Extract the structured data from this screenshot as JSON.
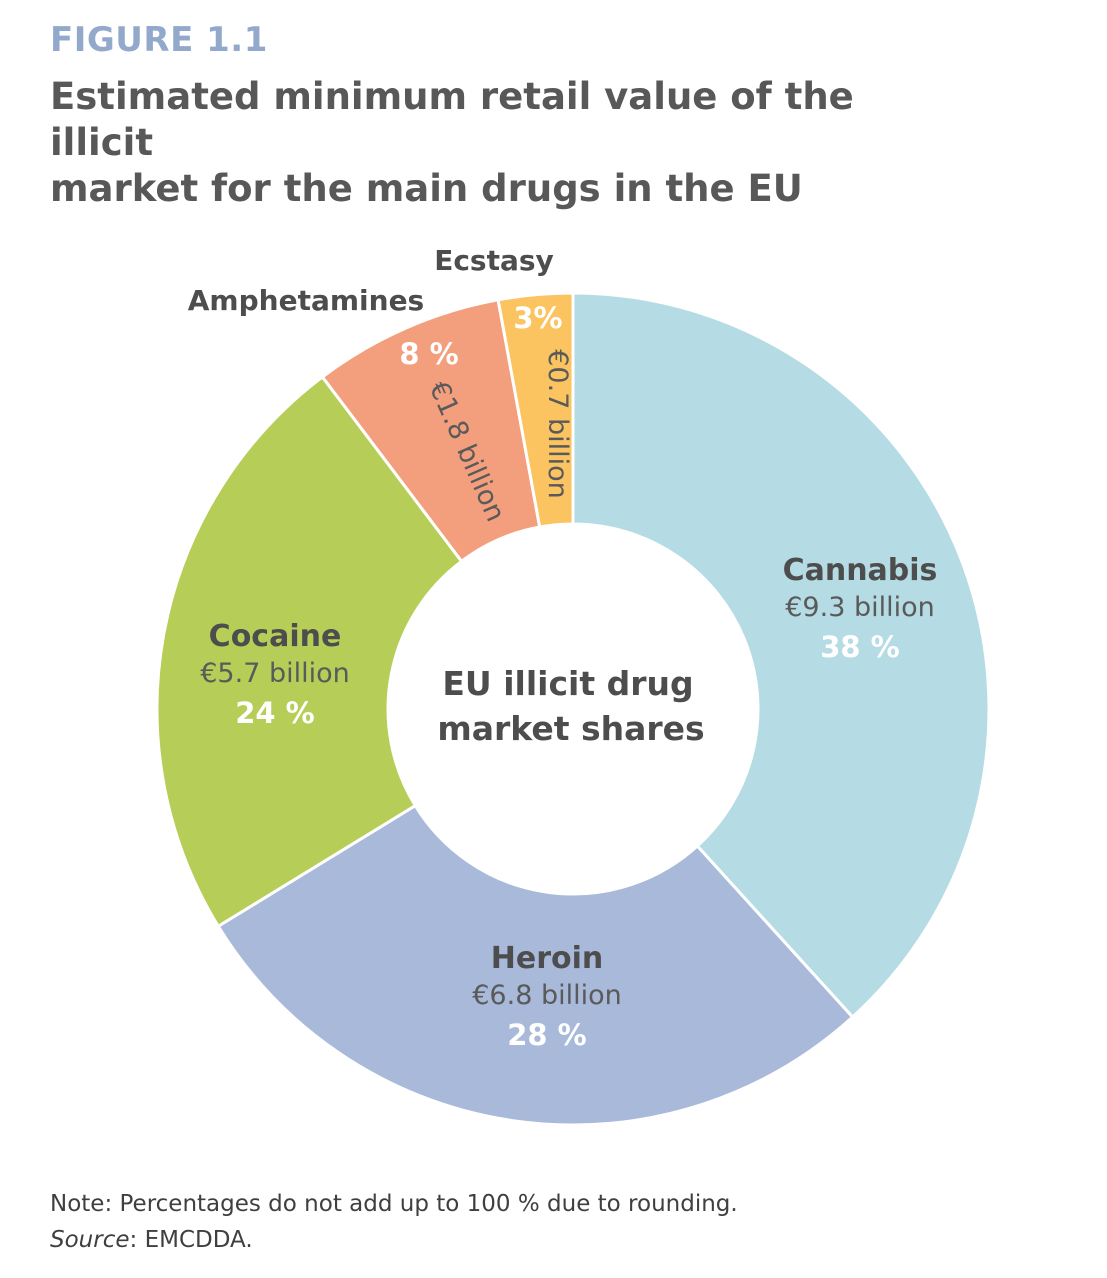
{
  "figure_label": "FIGURE 1.1",
  "title_lines": [
    "Estimated minimum retail value of the illicit",
    "market for the main drugs in the EU"
  ],
  "center_label_lines": [
    "EU illicit drug",
    "market shares"
  ],
  "chart_data": {
    "type": "pie",
    "title": "Estimated minimum retail value of the illicit market for the main drugs in the EU",
    "unit": "EUR billion",
    "slices": [
      {
        "name": "Cannabis",
        "value": 9.3,
        "value_label": "€9.3 billion",
        "pct_label": "38 %",
        "color": "#b5dbe4"
      },
      {
        "name": "Heroin",
        "value": 6.8,
        "value_label": "€6.8 billion",
        "pct_label": "28 %",
        "color": "#a8b9da"
      },
      {
        "name": "Cocaine",
        "value": 5.7,
        "value_label": "€5.7 billion",
        "pct_label": "24 %",
        "color": "#b6ce58"
      },
      {
        "name": "Amphetamines",
        "value": 1.8,
        "value_label": "€1.8 billion",
        "pct_label": "8 %",
        "color": "#f39f7d"
      },
      {
        "name": "Ecstasy",
        "value": 0.7,
        "value_label": "€0.7 billion",
        "pct_label": "3%",
        "color": "#fbc461"
      }
    ]
  },
  "note": "Note: Percentages do not add up to 100 % due to rounding.",
  "source_word": "Source",
  "source_rest": ": EMCDDA."
}
